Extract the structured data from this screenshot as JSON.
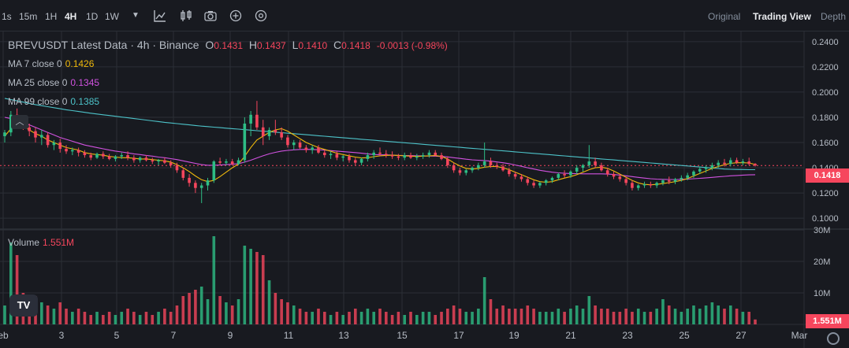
{
  "toolbar": {
    "timeframes": [
      "1s",
      "15m",
      "1H",
      "4H",
      "1D",
      "1W"
    ],
    "active": "4H",
    "views": [
      "Original",
      "Trading View",
      "Depth"
    ],
    "active_view": "Trading View"
  },
  "legend": {
    "symbol": "BREVUSDT Latest Data · 4h · Binance",
    "o_label": "O",
    "o": "0.1431",
    "h_label": "H",
    "h": "0.1437",
    "l_label": "L",
    "l": "0.1410",
    "c_label": "C",
    "c": "0.1418",
    "change": "-0.0013 (-0.98%)",
    "ma7_label": "MA 7 close 0",
    "ma7": "0.1426",
    "ma25_label": "MA 25 close 0",
    "ma25": "0.1345",
    "ma99_label": "MA 99 close 0",
    "ma99": "0.1385",
    "vol_label": "Volume",
    "vol": "1.551M"
  },
  "colors": {
    "up": "#2ebd85",
    "down": "#f6465d",
    "ma7": "#f0b90b",
    "ma25": "#d152e0",
    "ma99": "#4dc3c9",
    "bg": "#181a20",
    "grid": "#2b2f36"
  },
  "chart_data": {
    "type": "candlestick",
    "price_axis_ticks": [
      "0.2400",
      "0.2200",
      "0.2000",
      "0.1800",
      "0.1600",
      "0.1400",
      "0.1200",
      "0.1000"
    ],
    "price_range": [
      0.092,
      0.248
    ],
    "volume_axis_ticks": [
      "30M",
      "20M",
      "10M"
    ],
    "volume_range": [
      0,
      30
    ],
    "x_ticks": [
      "eb",
      "3",
      "5",
      "7",
      "9",
      "11",
      "13",
      "15",
      "17",
      "19",
      "21",
      "23",
      "25",
      "27",
      "Mar"
    ],
    "current_price": "0.1418",
    "current_volume": "1.551M",
    "candles": [
      [
        0.165,
        0.17,
        0.16,
        0.168,
        6
      ],
      [
        0.168,
        0.185,
        0.165,
        0.182,
        26
      ],
      [
        0.182,
        0.187,
        0.175,
        0.178,
        22
      ],
      [
        0.178,
        0.18,
        0.17,
        0.172,
        10
      ],
      [
        0.172,
        0.175,
        0.165,
        0.169,
        8
      ],
      [
        0.169,
        0.172,
        0.16,
        0.164,
        9
      ],
      [
        0.164,
        0.17,
        0.158,
        0.166,
        7
      ],
      [
        0.166,
        0.168,
        0.156,
        0.158,
        6
      ],
      [
        0.158,
        0.162,
        0.154,
        0.16,
        5
      ],
      [
        0.16,
        0.163,
        0.152,
        0.155,
        7
      ],
      [
        0.155,
        0.158,
        0.151,
        0.153,
        5
      ],
      [
        0.153,
        0.156,
        0.15,
        0.154,
        4
      ],
      [
        0.154,
        0.156,
        0.149,
        0.152,
        5
      ],
      [
        0.152,
        0.154,
        0.148,
        0.15,
        4
      ],
      [
        0.15,
        0.152,
        0.146,
        0.148,
        3
      ],
      [
        0.148,
        0.152,
        0.147,
        0.151,
        4
      ],
      [
        0.151,
        0.153,
        0.147,
        0.149,
        3
      ],
      [
        0.149,
        0.151,
        0.146,
        0.147,
        4
      ],
      [
        0.147,
        0.15,
        0.145,
        0.149,
        3
      ],
      [
        0.149,
        0.152,
        0.147,
        0.15,
        4
      ],
      [
        0.15,
        0.153,
        0.146,
        0.148,
        5
      ],
      [
        0.148,
        0.15,
        0.144,
        0.146,
        4
      ],
      [
        0.146,
        0.149,
        0.144,
        0.148,
        3
      ],
      [
        0.148,
        0.15,
        0.145,
        0.146,
        4
      ],
      [
        0.146,
        0.148,
        0.143,
        0.145,
        3
      ],
      [
        0.145,
        0.147,
        0.142,
        0.146,
        4
      ],
      [
        0.146,
        0.148,
        0.143,
        0.144,
        5
      ],
      [
        0.144,
        0.146,
        0.14,
        0.142,
        4
      ],
      [
        0.142,
        0.144,
        0.136,
        0.138,
        6
      ],
      [
        0.138,
        0.14,
        0.13,
        0.132,
        9
      ],
      [
        0.132,
        0.135,
        0.125,
        0.128,
        10
      ],
      [
        0.128,
        0.13,
        0.12,
        0.124,
        11
      ],
      [
        0.124,
        0.128,
        0.112,
        0.126,
        12
      ],
      [
        0.126,
        0.132,
        0.122,
        0.13,
        8
      ],
      [
        0.13,
        0.146,
        0.128,
        0.145,
        28
      ],
      [
        0.145,
        0.148,
        0.142,
        0.144,
        9
      ],
      [
        0.144,
        0.147,
        0.142,
        0.145,
        7
      ],
      [
        0.145,
        0.147,
        0.142,
        0.143,
        6
      ],
      [
        0.143,
        0.148,
        0.142,
        0.146,
        8
      ],
      [
        0.146,
        0.18,
        0.144,
        0.175,
        25
      ],
      [
        0.175,
        0.185,
        0.165,
        0.182,
        24
      ],
      [
        0.182,
        0.193,
        0.17,
        0.172,
        23
      ],
      [
        0.172,
        0.178,
        0.158,
        0.165,
        22
      ],
      [
        0.165,
        0.172,
        0.162,
        0.17,
        14
      ],
      [
        0.17,
        0.178,
        0.166,
        0.168,
        10
      ],
      [
        0.168,
        0.172,
        0.162,
        0.164,
        8
      ],
      [
        0.164,
        0.166,
        0.156,
        0.158,
        7
      ],
      [
        0.158,
        0.162,
        0.154,
        0.16,
        6
      ],
      [
        0.16,
        0.162,
        0.155,
        0.156,
        5
      ],
      [
        0.156,
        0.158,
        0.152,
        0.154,
        4
      ],
      [
        0.154,
        0.158,
        0.151,
        0.156,
        4
      ],
      [
        0.156,
        0.158,
        0.151,
        0.152,
        5
      ],
      [
        0.152,
        0.154,
        0.148,
        0.15,
        4
      ],
      [
        0.15,
        0.153,
        0.147,
        0.151,
        3
      ],
      [
        0.151,
        0.153,
        0.146,
        0.148,
        4
      ],
      [
        0.148,
        0.15,
        0.145,
        0.149,
        3
      ],
      [
        0.149,
        0.151,
        0.144,
        0.146,
        4
      ],
      [
        0.146,
        0.148,
        0.142,
        0.144,
        5
      ],
      [
        0.144,
        0.148,
        0.142,
        0.147,
        4
      ],
      [
        0.147,
        0.152,
        0.145,
        0.15,
        5
      ],
      [
        0.15,
        0.154,
        0.147,
        0.152,
        4
      ],
      [
        0.152,
        0.156,
        0.149,
        0.151,
        5
      ],
      [
        0.151,
        0.154,
        0.148,
        0.15,
        4
      ],
      [
        0.15,
        0.153,
        0.147,
        0.149,
        3
      ],
      [
        0.149,
        0.151,
        0.146,
        0.148,
        4
      ],
      [
        0.148,
        0.152,
        0.146,
        0.15,
        3
      ],
      [
        0.15,
        0.152,
        0.147,
        0.148,
        4
      ],
      [
        0.148,
        0.151,
        0.146,
        0.149,
        3
      ],
      [
        0.149,
        0.152,
        0.147,
        0.15,
        4
      ],
      [
        0.15,
        0.154,
        0.148,
        0.152,
        4
      ],
      [
        0.152,
        0.154,
        0.149,
        0.15,
        3
      ],
      [
        0.15,
        0.152,
        0.146,
        0.147,
        4
      ],
      [
        0.147,
        0.149,
        0.14,
        0.142,
        5
      ],
      [
        0.142,
        0.144,
        0.136,
        0.138,
        6
      ],
      [
        0.138,
        0.14,
        0.134,
        0.136,
        5
      ],
      [
        0.136,
        0.139,
        0.134,
        0.138,
        4
      ],
      [
        0.138,
        0.141,
        0.136,
        0.14,
        4
      ],
      [
        0.14,
        0.144,
        0.138,
        0.142,
        5
      ],
      [
        0.142,
        0.16,
        0.14,
        0.145,
        15
      ],
      [
        0.145,
        0.148,
        0.14,
        0.142,
        8
      ],
      [
        0.142,
        0.144,
        0.139,
        0.141,
        5
      ],
      [
        0.141,
        0.143,
        0.137,
        0.138,
        6
      ],
      [
        0.138,
        0.14,
        0.133,
        0.135,
        5
      ],
      [
        0.135,
        0.137,
        0.131,
        0.133,
        5
      ],
      [
        0.133,
        0.135,
        0.129,
        0.131,
        5
      ],
      [
        0.131,
        0.133,
        0.126,
        0.128,
        6
      ],
      [
        0.128,
        0.13,
        0.124,
        0.126,
        5
      ],
      [
        0.126,
        0.129,
        0.124,
        0.128,
        4
      ],
      [
        0.128,
        0.131,
        0.126,
        0.13,
        4
      ],
      [
        0.13,
        0.133,
        0.128,
        0.132,
        4
      ],
      [
        0.132,
        0.136,
        0.13,
        0.135,
        5
      ],
      [
        0.135,
        0.138,
        0.132,
        0.134,
        4
      ],
      [
        0.134,
        0.138,
        0.132,
        0.137,
        5
      ],
      [
        0.137,
        0.142,
        0.135,
        0.14,
        6
      ],
      [
        0.14,
        0.143,
        0.137,
        0.142,
        5
      ],
      [
        0.142,
        0.158,
        0.14,
        0.145,
        9
      ],
      [
        0.145,
        0.148,
        0.14,
        0.142,
        6
      ],
      [
        0.142,
        0.144,
        0.137,
        0.138,
        5
      ],
      [
        0.138,
        0.14,
        0.133,
        0.135,
        5
      ],
      [
        0.135,
        0.137,
        0.131,
        0.133,
        4
      ],
      [
        0.133,
        0.135,
        0.129,
        0.131,
        4
      ],
      [
        0.131,
        0.133,
        0.126,
        0.128,
        5
      ],
      [
        0.128,
        0.13,
        0.122,
        0.124,
        4
      ],
      [
        0.124,
        0.127,
        0.122,
        0.126,
        5
      ],
      [
        0.126,
        0.129,
        0.124,
        0.127,
        4
      ],
      [
        0.127,
        0.129,
        0.124,
        0.126,
        4
      ],
      [
        0.126,
        0.129,
        0.124,
        0.128,
        5
      ],
      [
        0.128,
        0.131,
        0.126,
        0.13,
        8
      ],
      [
        0.13,
        0.133,
        0.127,
        0.129,
        6
      ],
      [
        0.129,
        0.132,
        0.127,
        0.131,
        5
      ],
      [
        0.131,
        0.134,
        0.129,
        0.132,
        4
      ],
      [
        0.132,
        0.136,
        0.13,
        0.134,
        5
      ],
      [
        0.134,
        0.138,
        0.132,
        0.137,
        6
      ],
      [
        0.137,
        0.141,
        0.135,
        0.139,
        5
      ],
      [
        0.139,
        0.142,
        0.136,
        0.14,
        6
      ],
      [
        0.14,
        0.144,
        0.138,
        0.142,
        7
      ],
      [
        0.142,
        0.146,
        0.14,
        0.144,
        6
      ],
      [
        0.144,
        0.147,
        0.141,
        0.143,
        5
      ],
      [
        0.143,
        0.148,
        0.141,
        0.146,
        6
      ],
      [
        0.146,
        0.148,
        0.143,
        0.144,
        5
      ],
      [
        0.144,
        0.147,
        0.142,
        0.145,
        4
      ],
      [
        0.145,
        0.148,
        0.142,
        0.143,
        4
      ],
      [
        0.1431,
        0.1437,
        0.141,
        0.1418,
        1.551
      ]
    ],
    "ma7": [
      0.165,
      0.171,
      0.174,
      0.173,
      0.17,
      0.167,
      0.165,
      0.162,
      0.16,
      0.158,
      0.156,
      0.155,
      0.154,
      0.152,
      0.151,
      0.1505,
      0.15,
      0.149,
      0.1485,
      0.148,
      0.148,
      0.1475,
      0.147,
      0.147,
      0.1465,
      0.146,
      0.1455,
      0.1445,
      0.1425,
      0.14,
      0.137,
      0.1335,
      0.1305,
      0.129,
      0.13,
      0.133,
      0.1365,
      0.14,
      0.143,
      0.149,
      0.156,
      0.162,
      0.165,
      0.168,
      0.17,
      0.171,
      0.169,
      0.166,
      0.163,
      0.16,
      0.158,
      0.156,
      0.1545,
      0.153,
      0.1515,
      0.1505,
      0.1495,
      0.1485,
      0.1478,
      0.148,
      0.1488,
      0.1495,
      0.1498,
      0.15,
      0.1498,
      0.1495,
      0.1492,
      0.149,
      0.1492,
      0.1495,
      0.1497,
      0.149,
      0.147,
      0.144,
      0.1415,
      0.1395,
      0.139,
      0.1395,
      0.1405,
      0.141,
      0.141,
      0.14,
      0.1385,
      0.1365,
      0.1345,
      0.1325,
      0.1305,
      0.129,
      0.1285,
      0.129,
      0.1305,
      0.1318,
      0.133,
      0.1345,
      0.1365,
      0.1385,
      0.14,
      0.1405,
      0.1395,
      0.1375,
      0.135,
      0.1325,
      0.13,
      0.128,
      0.1268,
      0.1265,
      0.1268,
      0.1275,
      0.1282,
      0.129,
      0.13,
      0.1315,
      0.1335,
      0.1355,
      0.1375,
      0.1395,
      0.141,
      0.1425,
      0.1435,
      0.144,
      0.144,
      0.1438,
      0.1426
    ],
    "ma25": [
      0.18,
      0.179,
      0.178,
      0.176,
      0.174,
      0.172,
      0.17,
      0.168,
      0.166,
      0.164,
      0.1625,
      0.161,
      0.1595,
      0.158,
      0.157,
      0.156,
      0.155,
      0.154,
      0.1532,
      0.1525,
      0.1518,
      0.151,
      0.1505,
      0.1498,
      0.1492,
      0.1485,
      0.148,
      0.1472,
      0.1465,
      0.1455,
      0.1445,
      0.1435,
      0.1425,
      0.142,
      0.142,
      0.1422,
      0.1425,
      0.1428,
      0.1432,
      0.1445,
      0.146,
      0.1478,
      0.1495,
      0.151,
      0.1522,
      0.1532,
      0.1538,
      0.1542,
      0.1545,
      0.1546,
      0.1545,
      0.1543,
      0.154,
      0.1536,
      0.1532,
      0.1528,
      0.1524,
      0.152,
      0.1515,
      0.151,
      0.1505,
      0.1503,
      0.1502,
      0.15,
      0.1498,
      0.1497,
      0.1496,
      0.1495,
      0.1494,
      0.1493,
      0.1492,
      0.149,
      0.1486,
      0.148,
      0.1474,
      0.1468,
      0.1463,
      0.146,
      0.1457,
      0.1452,
      0.1446,
      0.144,
      0.1432,
      0.1422,
      0.1412,
      0.14,
      0.139,
      0.138,
      0.1372,
      0.1365,
      0.136,
      0.1356,
      0.1354,
      0.1353,
      0.1352,
      0.1352,
      0.1352,
      0.1352,
      0.135,
      0.1347,
      0.1342,
      0.1336,
      0.133,
      0.1324,
      0.1318,
      0.1313,
      0.131,
      0.1308,
      0.1307,
      0.1307,
      0.1308,
      0.131,
      0.1313,
      0.1316,
      0.132,
      0.1324,
      0.1328,
      0.1332,
      0.1336,
      0.1339,
      0.1342,
      0.1344,
      0.1345
    ],
    "ma99": [
      0.195,
      0.194,
      0.193,
      0.192,
      0.191,
      0.19,
      0.1892,
      0.1884,
      0.1876,
      0.1868,
      0.186,
      0.1853,
      0.1846,
      0.1839,
      0.1832,
      0.1826,
      0.182,
      0.1814,
      0.1808,
      0.1802,
      0.1796,
      0.179,
      0.1784,
      0.1778,
      0.1772,
      0.1766,
      0.176,
      0.1755,
      0.175,
      0.1745,
      0.174,
      0.1735,
      0.173,
      0.1726,
      0.1722,
      0.1718,
      0.1714,
      0.171,
      0.1706,
      0.1702,
      0.1698,
      0.1694,
      0.169,
      0.1686,
      0.1682,
      0.1678,
      0.1674,
      0.167,
      0.1666,
      0.1662,
      0.1658,
      0.1654,
      0.165,
      0.1646,
      0.1642,
      0.1638,
      0.1634,
      0.163,
      0.1626,
      0.1622,
      0.1618,
      0.1614,
      0.161,
      0.1606,
      0.1602,
      0.1598,
      0.1594,
      0.159,
      0.1586,
      0.1582,
      0.1578,
      0.1574,
      0.157,
      0.1566,
      0.1562,
      0.1558,
      0.1554,
      0.155,
      0.1546,
      0.1542,
      0.1538,
      0.1534,
      0.153,
      0.1526,
      0.1522,
      0.1518,
      0.1514,
      0.151,
      0.1506,
      0.1502,
      0.1498,
      0.1494,
      0.149,
      0.1486,
      0.1482,
      0.1478,
      0.1474,
      0.147,
      0.1466,
      0.1462,
      0.1458,
      0.1454,
      0.145,
      0.1446,
      0.1442,
      0.1438,
      0.1434,
      0.143,
      0.1426,
      0.1422,
      0.1418,
      0.1414,
      0.141,
      0.1406,
      0.1402,
      0.1398,
      0.1394,
      0.139,
      0.1388,
      0.1387,
      0.1386,
      0.1385,
      0.1385
    ]
  }
}
